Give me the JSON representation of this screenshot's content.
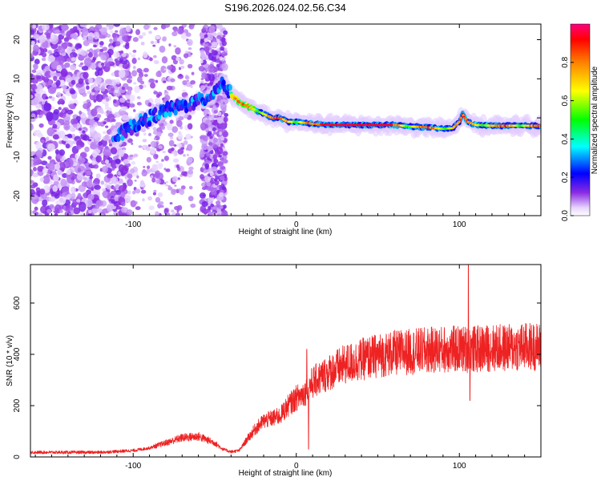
{
  "title": "S196.2026.024.02.56.C34",
  "chart_data": [
    {
      "type": "heatmap",
      "name": "spectrogram",
      "xlabel": "Height of straight line (km)",
      "ylabel": "Frequency (Hz)",
      "xlim": [
        -163,
        150
      ],
      "ylim": [
        -25,
        24
      ],
      "xticks": [
        -100,
        0,
        100
      ],
      "xtick_labels": [
        "-100",
        "0",
        "100"
      ],
      "yticks": [
        20,
        10,
        0,
        -10,
        -20
      ],
      "ytick_labels": [
        "20",
        "10",
        "0",
        "-10",
        "-20"
      ],
      "ridge": {
        "x": [
          -110,
          -100,
          -90,
          -80,
          -70,
          -62,
          -55,
          -50,
          -45,
          -40,
          -35,
          -30,
          -25,
          -20,
          -15,
          -10,
          -5,
          0,
          10,
          20,
          30,
          40,
          50,
          60,
          70,
          80,
          90,
          96,
          100,
          102,
          105,
          110,
          120,
          130,
          140,
          150
        ],
        "y": [
          -5,
          -2,
          0,
          2,
          3,
          4,
          5,
          7,
          9,
          6,
          4,
          3,
          2,
          1,
          0,
          0,
          -1,
          -1,
          -1.5,
          -1.8,
          -1.8,
          -1.8,
          -1.8,
          -1.8,
          -2.2,
          -2.4,
          -2.8,
          -2.6,
          -1,
          1,
          -1,
          -1.8,
          -2,
          -2,
          -2,
          -2
        ]
      },
      "colorbar": {
        "label": "Normalized spectral amplitude",
        "range": [
          0,
          1
        ],
        "ticks": [
          0.0,
          0.2,
          0.4,
          0.6,
          0.8
        ],
        "tick_labels": [
          "0.0",
          "0.2",
          "0.4",
          "0.6",
          "0.8"
        ]
      }
    },
    {
      "type": "line",
      "name": "snr",
      "xlabel": "Height of straight line (km)",
      "ylabel": "SNR (10 * v/v)",
      "xlim": [
        -163,
        150
      ],
      "ylim": [
        0,
        750
      ],
      "xticks": [
        -100,
        0,
        100
      ],
      "xtick_labels": [
        "-100",
        "0",
        "100"
      ],
      "yticks": [
        0,
        200,
        400,
        600
      ],
      "ytick_labels": [
        "0",
        "200",
        "400",
        "600"
      ],
      "color": "#ee2222",
      "envelope": {
        "x": [
          -163,
          -120,
          -100,
          -90,
          -80,
          -70,
          -60,
          -50,
          -45,
          -40,
          -35,
          -30,
          -25,
          -20,
          -15,
          -10,
          -5,
          0,
          5,
          10,
          15,
          20,
          30,
          40,
          50,
          60,
          70,
          80,
          90,
          100,
          110,
          120,
          130,
          140,
          150
        ],
        "y": [
          18,
          18,
          25,
          35,
          55,
          75,
          80,
          55,
          30,
          20,
          25,
          70,
          110,
          140,
          150,
          160,
          200,
          230,
          250,
          290,
          310,
          330,
          360,
          380,
          395,
          405,
          410,
          415,
          420,
          420,
          420,
          425,
          425,
          430,
          430
        ]
      },
      "spikes": [
        {
          "x": 105.5,
          "y": 750
        },
        {
          "x": 106.5,
          "y": 220
        },
        {
          "x": 7.5,
          "y": 30
        },
        {
          "x": 6.5,
          "y": 420
        }
      ]
    }
  ]
}
